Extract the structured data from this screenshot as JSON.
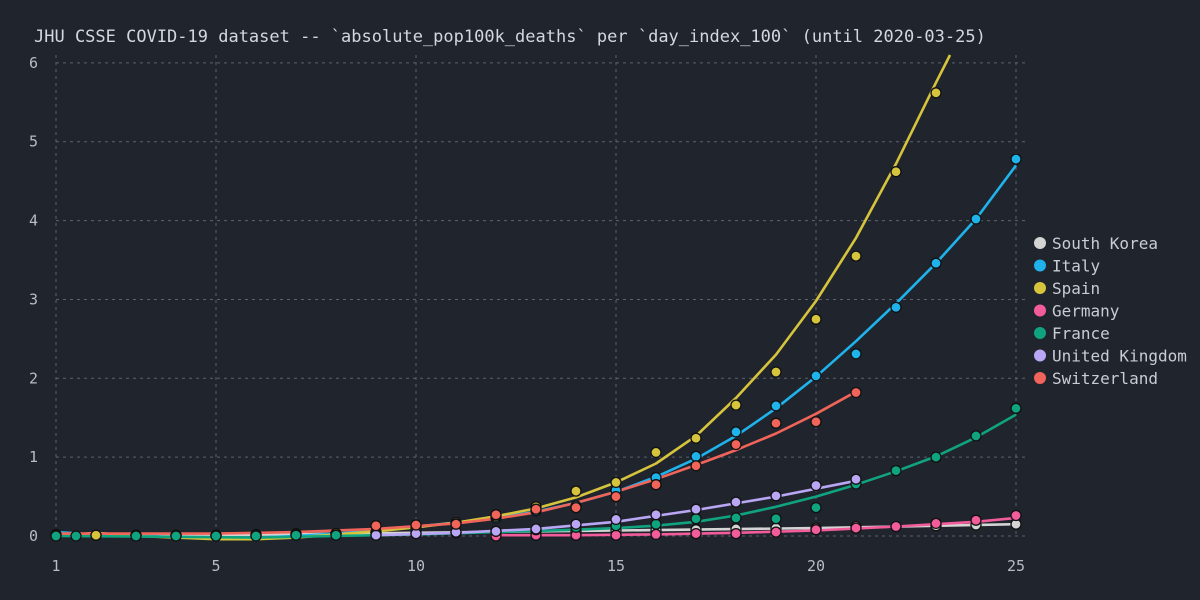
{
  "chart_data": {
    "type": "line",
    "title": "JHU CSSE COVID-19 dataset -- `absolute_pop100k_deaths` per `day_index_100` (until 2020-03-25)",
    "xlabel": "",
    "ylabel": "",
    "xlim": [
      1,
      25
    ],
    "ylim": [
      0,
      6.1
    ],
    "x_ticks": [
      1,
      5,
      10,
      15,
      20,
      25
    ],
    "y_ticks": [
      0,
      1,
      2,
      3,
      4,
      5,
      6
    ],
    "grid": true,
    "legend_position": "right",
    "series": [
      {
        "name": "South Korea",
        "color": "#d4d4d4",
        "points": [
          [
            1,
            0.01
          ],
          [
            2,
            0.01
          ],
          [
            3,
            0.01
          ],
          [
            4,
            0.01
          ],
          [
            5,
            0.01
          ],
          [
            6,
            0.02
          ],
          [
            7,
            0.03
          ],
          [
            8,
            0.03
          ],
          [
            9,
            0.04
          ],
          [
            10,
            0.04
          ],
          [
            11,
            0.05
          ],
          [
            12,
            0.05
          ],
          [
            13,
            0.06
          ],
          [
            14,
            0.06
          ],
          [
            15,
            0.07
          ],
          [
            16,
            0.07
          ],
          [
            17,
            0.08
          ],
          [
            18,
            0.09
          ],
          [
            19,
            0.1
          ],
          [
            20,
            0.1
          ],
          [
            21,
            0.12
          ],
          [
            22,
            0.12
          ],
          [
            23,
            0.13
          ],
          [
            24,
            0.14
          ],
          [
            25,
            0.15
          ]
        ],
        "fit": [
          [
            1,
            0.01
          ],
          [
            5,
            0.01
          ],
          [
            10,
            0.04
          ],
          [
            15,
            0.07
          ],
          [
            20,
            0.1
          ],
          [
            25,
            0.15
          ]
        ]
      },
      {
        "name": "Italy",
        "color": "#1fb3ec",
        "points": [
          [
            1,
            0.02
          ],
          [
            2,
            0.01
          ],
          [
            3,
            0.01
          ],
          [
            4,
            0.01
          ],
          [
            5,
            0.01
          ],
          [
            6,
            0.01
          ],
          [
            7,
            0.02
          ],
          [
            8,
            0.03
          ],
          [
            9,
            0.05
          ],
          [
            10,
            0.14
          ],
          [
            11,
            0.17
          ],
          [
            12,
            0.23
          ],
          [
            13,
            0.32
          ],
          [
            14,
            0.38
          ],
          [
            15,
            0.58
          ],
          [
            16,
            0.74
          ],
          [
            17,
            1.01
          ],
          [
            18,
            1.32
          ],
          [
            19,
            1.65
          ],
          [
            20,
            2.03
          ],
          [
            21,
            2.31
          ],
          [
            22,
            2.9
          ],
          [
            23,
            3.46
          ],
          [
            24,
            4.02
          ],
          [
            25,
            4.78
          ]
        ],
        "fit": [
          [
            1,
            0.05
          ],
          [
            2,
            0.02
          ],
          [
            3,
            0.01
          ],
          [
            4,
            -0.02
          ],
          [
            5,
            -0.02
          ],
          [
            6,
            -0.02
          ],
          [
            7,
            0
          ],
          [
            8,
            0.03
          ],
          [
            9,
            0.07
          ],
          [
            10,
            0.12
          ],
          [
            11,
            0.17
          ],
          [
            12,
            0.23
          ],
          [
            13,
            0.31
          ],
          [
            14,
            0.42
          ],
          [
            15,
            0.56
          ],
          [
            16,
            0.75
          ],
          [
            17,
            0.98
          ],
          [
            18,
            1.27
          ],
          [
            19,
            1.62
          ],
          [
            20,
            2.02
          ],
          [
            21,
            2.47
          ],
          [
            22,
            2.95
          ],
          [
            23,
            3.46
          ],
          [
            24,
            4.02
          ],
          [
            25,
            4.7
          ]
        ]
      },
      {
        "name": "Spain",
        "color": "#d6c43d",
        "points": [
          [
            1,
            0.01
          ],
          [
            2,
            0.01
          ],
          [
            3,
            0.01
          ],
          [
            4,
            0.01
          ],
          [
            5,
            0.01
          ],
          [
            6,
            0.01
          ],
          [
            7,
            0.02
          ],
          [
            8,
            0.03
          ],
          [
            9,
            0.05
          ],
          [
            10,
            0.1
          ],
          [
            11,
            0.17
          ],
          [
            12,
            0.25
          ],
          [
            13,
            0.37
          ],
          [
            14,
            0.57
          ],
          [
            15,
            0.68
          ],
          [
            16,
            1.06
          ],
          [
            17,
            1.24
          ],
          [
            18,
            1.66
          ],
          [
            19,
            2.08
          ],
          [
            20,
            2.75
          ],
          [
            21,
            3.55
          ],
          [
            22,
            4.62
          ],
          [
            23,
            5.62
          ]
        ],
        "fit": [
          [
            1,
            0
          ],
          [
            2,
            0.04
          ],
          [
            3,
            0
          ],
          [
            4,
            -0.02
          ],
          [
            5,
            -0.04
          ],
          [
            6,
            -0.04
          ],
          [
            7,
            -0.02
          ],
          [
            8,
            0.02
          ],
          [
            9,
            0.06
          ],
          [
            10,
            0.11
          ],
          [
            11,
            0.17
          ],
          [
            12,
            0.25
          ],
          [
            13,
            0.35
          ],
          [
            14,
            0.49
          ],
          [
            15,
            0.68
          ],
          [
            16,
            0.92
          ],
          [
            17,
            1.27
          ],
          [
            18,
            1.75
          ],
          [
            19,
            2.3
          ],
          [
            20,
            2.98
          ],
          [
            21,
            3.78
          ],
          [
            22,
            4.72
          ],
          [
            23,
            5.75
          ],
          [
            23.35,
            6.1
          ]
        ]
      },
      {
        "name": "Germany",
        "color": "#f25c9b",
        "points": [
          [
            12,
            0
          ],
          [
            13,
            0.01
          ],
          [
            14,
            0.01
          ],
          [
            15,
            0.01
          ],
          [
            16,
            0.02
          ],
          [
            17,
            0.03
          ],
          [
            18,
            0.03
          ],
          [
            19,
            0.05
          ],
          [
            20,
            0.08
          ],
          [
            21,
            0.1
          ],
          [
            22,
            0.12
          ],
          [
            23,
            0.16
          ],
          [
            24,
            0.2
          ],
          [
            25,
            0.26
          ]
        ],
        "fit": [
          [
            12,
            0.01
          ],
          [
            14,
            0.01
          ],
          [
            16,
            0.02
          ],
          [
            18,
            0.04
          ],
          [
            20,
            0.07
          ],
          [
            22,
            0.12
          ],
          [
            24,
            0.18
          ],
          [
            25,
            0.23
          ]
        ]
      },
      {
        "name": "France",
        "color": "#10a37f",
        "points": [
          [
            1,
            0
          ],
          [
            1.5,
            0
          ],
          [
            3,
            0
          ],
          [
            4,
            0
          ],
          [
            5,
            0
          ],
          [
            6,
            0
          ],
          [
            7,
            0.01
          ],
          [
            8,
            0.01
          ],
          [
            9,
            0.02
          ],
          [
            10,
            0.03
          ],
          [
            11,
            0.04
          ],
          [
            12,
            0.06
          ],
          [
            13,
            0.08
          ],
          [
            14,
            0.11
          ],
          [
            15,
            0.13
          ],
          [
            16,
            0.15
          ],
          [
            17,
            0.22
          ],
          [
            18,
            0.23
          ],
          [
            19,
            0.22
          ],
          [
            20,
            0.36
          ],
          [
            21,
            0.66
          ],
          [
            22,
            0.83
          ],
          [
            23,
            1.0
          ],
          [
            24,
            1.27
          ],
          [
            25,
            1.62
          ]
        ],
        "fit": [
          [
            1,
            0
          ],
          [
            4,
            -0.01
          ],
          [
            6,
            -0.02
          ],
          [
            8,
            0
          ],
          [
            10,
            0.02
          ],
          [
            12,
            0.05
          ],
          [
            14,
            0.08
          ],
          [
            15,
            0.1
          ],
          [
            16,
            0.13
          ],
          [
            17,
            0.18
          ],
          [
            18,
            0.26
          ],
          [
            19,
            0.37
          ],
          [
            20,
            0.5
          ],
          [
            21,
            0.65
          ],
          [
            22,
            0.82
          ],
          [
            23,
            1.01
          ],
          [
            24,
            1.25
          ],
          [
            25,
            1.54
          ]
        ]
      },
      {
        "name": "United Kingdom",
        "color": "#b9a7f5",
        "points": [
          [
            9,
            0.01
          ],
          [
            10,
            0.03
          ],
          [
            11,
            0.05
          ],
          [
            12,
            0.06
          ],
          [
            13,
            0.09
          ],
          [
            14,
            0.15
          ],
          [
            15,
            0.21
          ],
          [
            16,
            0.27
          ],
          [
            17,
            0.34
          ],
          [
            18,
            0.43
          ],
          [
            19,
            0.51
          ],
          [
            20,
            0.64
          ],
          [
            21,
            0.72
          ]
        ],
        "fit": [
          [
            9,
            0.01
          ],
          [
            11,
            0.04
          ],
          [
            13,
            0.09
          ],
          [
            15,
            0.18
          ],
          [
            17,
            0.33
          ],
          [
            19,
            0.5
          ],
          [
            21,
            0.7
          ]
        ]
      },
      {
        "name": "Switzerland",
        "color": "#f0645a",
        "points": [
          [
            9,
            0.13
          ],
          [
            10,
            0.14
          ],
          [
            11,
            0.15
          ],
          [
            12,
            0.27
          ],
          [
            13,
            0.34
          ],
          [
            14,
            0.36
          ],
          [
            15,
            0.5
          ],
          [
            16,
            0.65
          ],
          [
            17,
            0.89
          ],
          [
            18,
            1.16
          ],
          [
            19,
            1.43
          ],
          [
            20,
            1.45
          ],
          [
            21,
            1.82
          ]
        ],
        "fit": [
          [
            1,
            0.03
          ],
          [
            3,
            0.03
          ],
          [
            5,
            0.03
          ],
          [
            7,
            0.05
          ],
          [
            9,
            0.09
          ],
          [
            11,
            0.16
          ],
          [
            12,
            0.22
          ],
          [
            13,
            0.3
          ],
          [
            14,
            0.42
          ],
          [
            15,
            0.56
          ],
          [
            16,
            0.72
          ],
          [
            17,
            0.9
          ],
          [
            18,
            1.09
          ],
          [
            19,
            1.3
          ],
          [
            20,
            1.55
          ],
          [
            21,
            1.83
          ]
        ]
      }
    ]
  }
}
